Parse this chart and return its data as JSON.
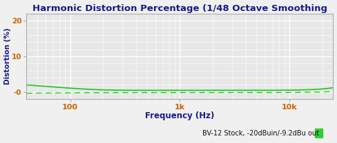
{
  "title": "Harmonic Distortion Percentage (1/48 Octave Smoothing",
  "xlabel": "Frequency (Hz)",
  "ylabel": "Distortion (%)",
  "xlim": [
    40,
    25000
  ],
  "ylim": [
    -2,
    22
  ],
  "bg_color": "#e8e8e8",
  "fig_color": "#f0f0f0",
  "line_color": "#22cc22",
  "legend_label": "BV-12 Stock, -20dBuin/-9.2dBu out",
  "legend_color": "#33cc33",
  "title_color": "#1a1a8c",
  "axis_label_color": "#1a1a8c",
  "tick_label_color": "#cc6600"
}
